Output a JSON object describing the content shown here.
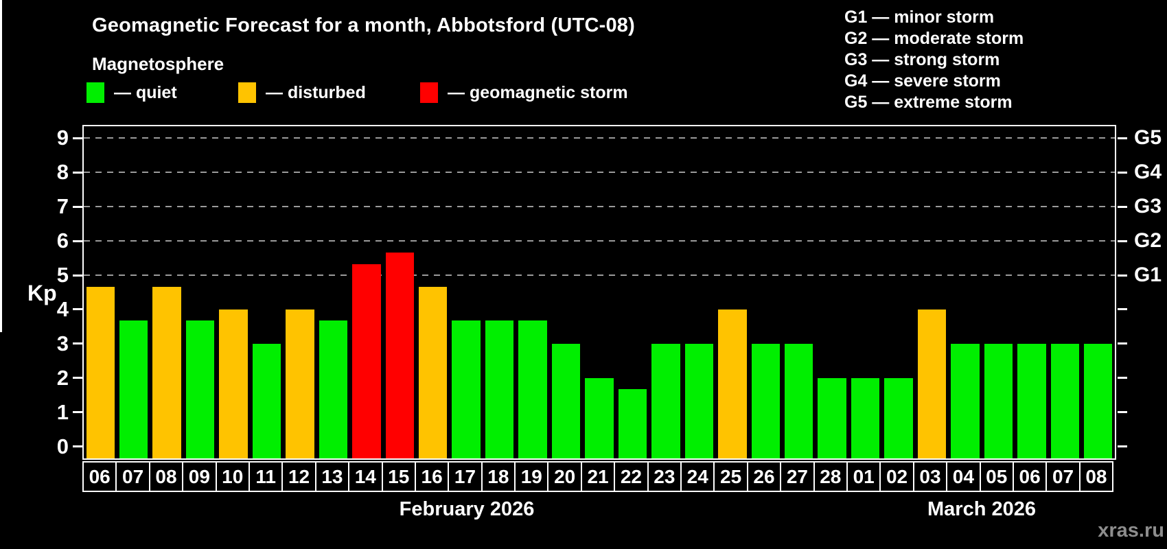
{
  "header": {
    "title": "Geomagnetic Forecast for a month, Abbotsford (UTC-08)",
    "subtitle": "Magnetosphere"
  },
  "legend": {
    "quiet": {
      "label": "— quiet",
      "color": "#00ef00"
    },
    "disturbed": {
      "label": "— disturbed",
      "color": "#ffc300"
    },
    "storm": {
      "label": "— geomagnetic storm",
      "color": "#ff0000"
    }
  },
  "g_scale_legend": [
    "G1 — minor storm",
    "G2 — moderate storm",
    "G3 — strong storm",
    "G4 — severe storm",
    "G5 — extreme storm"
  ],
  "watermark": "xras.ru",
  "chart_data": {
    "type": "bar",
    "title": "Geomagnetic Forecast for a month, Abbotsford (UTC-08)",
    "subtitle": "Magnetosphere",
    "xlabel": "",
    "ylabel": "Kp",
    "ylim": [
      0,
      9
    ],
    "y_ticks": [
      0,
      1,
      2,
      3,
      4,
      5,
      6,
      7,
      8,
      9
    ],
    "gridline_kp": [
      5,
      6,
      7,
      8,
      9
    ],
    "grid": "dashed horizontal lines at storm levels G1–G5",
    "legend_position": "top",
    "right_axis": [
      {
        "label": "G1",
        "kp": 5
      },
      {
        "label": "G2",
        "kp": 6
      },
      {
        "label": "G3",
        "kp": 7
      },
      {
        "label": "G4",
        "kp": 8
      },
      {
        "label": "G5",
        "kp": 9
      }
    ],
    "months": [
      {
        "label": "February 2026",
        "days": 23
      },
      {
        "label": "March 2026",
        "days": 8
      }
    ],
    "bars": [
      {
        "day": "06",
        "month": "February 2026",
        "kp": 4.67,
        "status": "disturbed"
      },
      {
        "day": "07",
        "month": "February 2026",
        "kp": 3.67,
        "status": "quiet"
      },
      {
        "day": "08",
        "month": "February 2026",
        "kp": 4.67,
        "status": "disturbed"
      },
      {
        "day": "09",
        "month": "February 2026",
        "kp": 3.67,
        "status": "quiet"
      },
      {
        "day": "10",
        "month": "February 2026",
        "kp": 4.0,
        "status": "disturbed"
      },
      {
        "day": "11",
        "month": "February 2026",
        "kp": 3.0,
        "status": "quiet"
      },
      {
        "day": "12",
        "month": "February 2026",
        "kp": 4.0,
        "status": "disturbed"
      },
      {
        "day": "13",
        "month": "February 2026",
        "kp": 3.67,
        "status": "quiet"
      },
      {
        "day": "14",
        "month": "February 2026",
        "kp": 5.33,
        "status": "storm"
      },
      {
        "day": "15",
        "month": "February 2026",
        "kp": 5.67,
        "status": "storm"
      },
      {
        "day": "16",
        "month": "February 2026",
        "kp": 4.67,
        "status": "disturbed"
      },
      {
        "day": "17",
        "month": "February 2026",
        "kp": 3.67,
        "status": "quiet"
      },
      {
        "day": "18",
        "month": "February 2026",
        "kp": 3.67,
        "status": "quiet"
      },
      {
        "day": "19",
        "month": "February 2026",
        "kp": 3.67,
        "status": "quiet"
      },
      {
        "day": "20",
        "month": "February 2026",
        "kp": 3.0,
        "status": "quiet"
      },
      {
        "day": "21",
        "month": "February 2026",
        "kp": 2.0,
        "status": "quiet"
      },
      {
        "day": "22",
        "month": "February 2026",
        "kp": 1.67,
        "status": "quiet"
      },
      {
        "day": "23",
        "month": "February 2026",
        "kp": 3.0,
        "status": "quiet"
      },
      {
        "day": "24",
        "month": "February 2026",
        "kp": 3.0,
        "status": "quiet"
      },
      {
        "day": "25",
        "month": "February 2026",
        "kp": 4.0,
        "status": "disturbed"
      },
      {
        "day": "26",
        "month": "February 2026",
        "kp": 3.0,
        "status": "quiet"
      },
      {
        "day": "27",
        "month": "February 2026",
        "kp": 3.0,
        "status": "quiet"
      },
      {
        "day": "28",
        "month": "February 2026",
        "kp": 2.0,
        "status": "quiet"
      },
      {
        "day": "01",
        "month": "March 2026",
        "kp": 2.0,
        "status": "quiet"
      },
      {
        "day": "02",
        "month": "March 2026",
        "kp": 2.0,
        "status": "quiet"
      },
      {
        "day": "03",
        "month": "March 2026",
        "kp": 4.0,
        "status": "disturbed"
      },
      {
        "day": "04",
        "month": "March 2026",
        "kp": 3.0,
        "status": "quiet"
      },
      {
        "day": "05",
        "month": "March 2026",
        "kp": 3.0,
        "status": "quiet"
      },
      {
        "day": "06",
        "month": "March 2026",
        "kp": 3.0,
        "status": "quiet"
      },
      {
        "day": "07",
        "month": "March 2026",
        "kp": 3.0,
        "status": "quiet"
      },
      {
        "day": "08",
        "month": "March 2026",
        "kp": 3.0,
        "status": "quiet"
      }
    ]
  }
}
